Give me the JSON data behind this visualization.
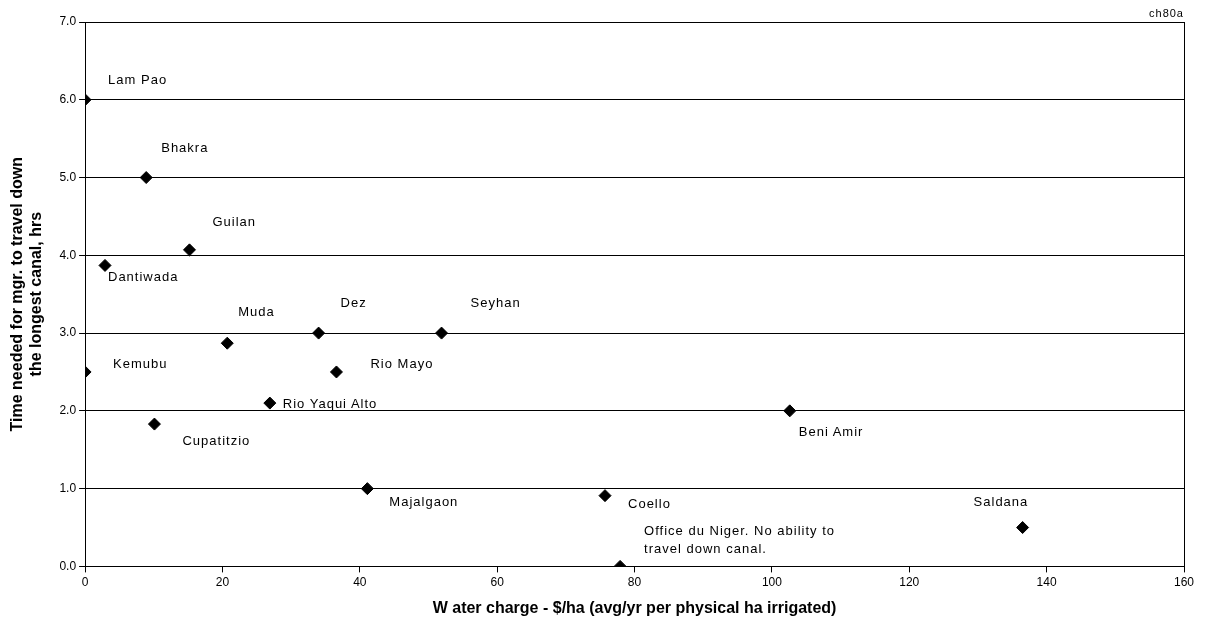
{
  "chart_data": {
    "type": "scatter",
    "xlabel": "W ater charge - $/ha (avg/yr per physical ha irrigated)",
    "ylabel": "Time needed for mgr. to travel down the longest canal, hrs",
    "series": [
      {
        "color": "#000000",
        "x": [
          0,
          8.9,
          15.2,
          2.9,
          20.7,
          34.0,
          51.9,
          0,
          36.6,
          26.9,
          10.1,
          41.1,
          102.6,
          75.7,
          136.5,
          77.9
        ],
        "values": [
          6.0,
          5.0,
          4.07,
          3.87,
          2.87,
          3.0,
          3.0,
          2.5,
          2.5,
          2.1,
          1.83,
          1.0,
          2.0,
          0.91,
          0.5,
          0.0
        ]
      }
    ],
    "xlim": [
      0,
      160
    ],
    "xticks": [
      0,
      20,
      40,
      60,
      80,
      100,
      120,
      140,
      160
    ],
    "ylim": [
      0,
      7
    ],
    "yticks": [
      {
        "value": 0,
        "label": "0.0"
      },
      {
        "value": 1,
        "label": "1.0"
      },
      {
        "value": 2,
        "label": "2.0"
      },
      {
        "value": 3,
        "label": "3.0"
      },
      {
        "value": 4,
        "label": "4.0"
      },
      {
        "value": 5,
        "label": "5.0"
      },
      {
        "value": 6,
        "label": "6.0"
      },
      {
        "value": 7,
        "label": "7.0"
      }
    ],
    "grid": "y",
    "legend": false,
    "marker": "diamond",
    "annotations": [
      {
        "text": "Lam Pao",
        "x": 0,
        "y": 6.0
      },
      {
        "text": "Bhakra",
        "x": 8.9,
        "y": 5.0
      },
      {
        "text": "Guilan",
        "x": 15.2,
        "y": 4.07
      },
      {
        "text": "Dantiwada",
        "x": 2.9,
        "y": 3.87
      },
      {
        "text": "Muda",
        "x": 20.7,
        "y": 2.87
      },
      {
        "text": "Dez",
        "x": 34.0,
        "y": 3.0
      },
      {
        "text": "Seyhan",
        "x": 51.9,
        "y": 3.0
      },
      {
        "text": "Kemubu",
        "x": 0,
        "y": 2.5
      },
      {
        "text": "Rio Mayo",
        "x": 36.6,
        "y": 2.5
      },
      {
        "text": "Rio Yaqui Alto",
        "x": 26.9,
        "y": 2.1
      },
      {
        "text": "Cupatitzio",
        "x": 10.1,
        "y": 1.83
      },
      {
        "text": "Majalgaon",
        "x": 41.1,
        "y": 1.0
      },
      {
        "text": "Beni Amir",
        "x": 102.6,
        "y": 2.0
      },
      {
        "text": "Coello",
        "x": 75.7,
        "y": 0.91
      },
      {
        "text": "Saldana",
        "x": 136.5,
        "y": 0.5
      },
      {
        "text": "Office du Niger. No ability to travel down canal.",
        "x": 77.9,
        "y": 0.0
      },
      "ch80a"
    ]
  }
}
